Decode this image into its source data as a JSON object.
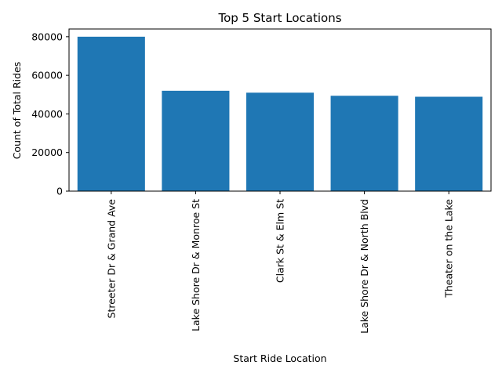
{
  "chart_data": {
    "type": "bar",
    "title": "Top 5 Start Locations",
    "xlabel": "Start Ride Location",
    "ylabel": "Count of Total Rides",
    "categories": [
      "Streeter Dr & Grand Ave",
      "Lake Shore Dr & Monroe St",
      "Clark St & Elm St",
      "Lake Shore Dr & North Blvd",
      "Theater on the Lake"
    ],
    "values": [
      80000,
      52000,
      51000,
      49400,
      48900
    ],
    "ylim": [
      0,
      84000
    ],
    "yticks": [
      0,
      20000,
      40000,
      60000,
      80000
    ],
    "bar_color": "#1f77b4",
    "grid": false,
    "legend": "none"
  }
}
